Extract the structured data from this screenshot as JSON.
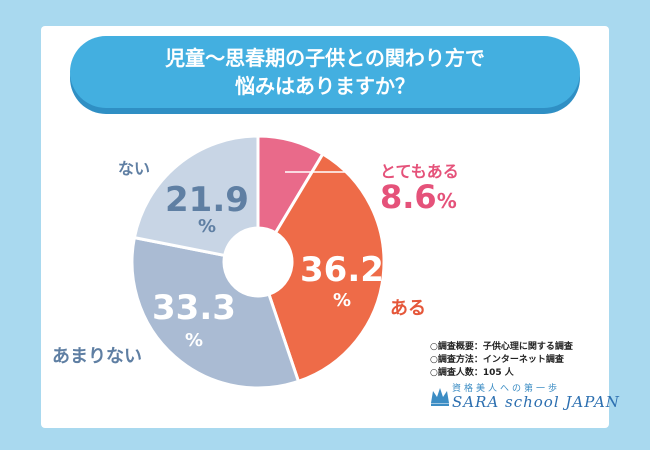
{
  "title": {
    "line1": "児童〜思春期の子供との関わり方で",
    "line2": "悩みはありますか？"
  },
  "chart_data": {
    "type": "pie",
    "style": "donut",
    "title": "児童〜思春期の子供との関わり方で悩みはありますか？",
    "unit": "%",
    "slices": [
      {
        "label": "とてもある",
        "value": 8.6,
        "color": "#e96a8a"
      },
      {
        "label": "ある",
        "value": 36.2,
        "color": "#ee6b48"
      },
      {
        "label": "あまりない",
        "value": 33.3,
        "color": "#aabbd3"
      },
      {
        "label": "ない",
        "value": 21.9,
        "color": "#c8d5e5"
      }
    ]
  },
  "labels": {
    "totemo_aru": "とてもある",
    "totemo_aru_value": "8.6",
    "aru": "ある",
    "aru_value": "36.2",
    "amari_nai": "あまりない",
    "amari_nai_value": "33.3",
    "nai": "ない",
    "nai_value": "21.9",
    "percent": "%"
  },
  "notes": [
    "○調査概要：子供心理に関する調査",
    "○調査方法：インターネット調査",
    "○調査人数：105 人"
  ],
  "logo": {
    "subtitle": "資格美人への第一歩",
    "name": "SARA school JAPAN"
  },
  "colors": {
    "background": "#a9d9ef",
    "title_pill": "#43afe0",
    "pink": "#e96a8a",
    "orange": "#ee6b48",
    "gray_blue": "#5f7fa3"
  }
}
